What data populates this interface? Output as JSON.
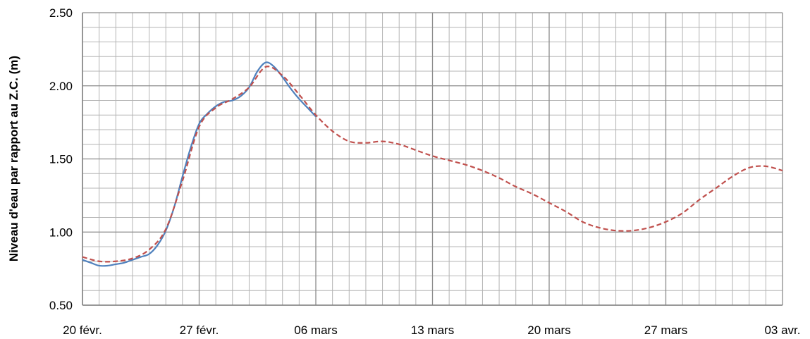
{
  "chart_data": {
    "type": "line",
    "title": "",
    "xlabel": "",
    "ylabel": "Niveau d'eau par rapport au Z.C. (m)",
    "ylim": [
      0.5,
      2.5
    ],
    "xlim": [
      "2011-02-20",
      "2011-04-03"
    ],
    "x_ticks": [
      "20 févr.",
      "27 févr.",
      "06 mars",
      "13 mars",
      "20 mars",
      "27 mars",
      "03 avr."
    ],
    "y_ticks": [
      "0.50",
      "1.00",
      "1.50",
      "2.00",
      "2.50"
    ],
    "grid": true,
    "legend": "none",
    "series": [
      {
        "color": "#4f81bd",
        "style": "solid",
        "x": [
          "2011-02-20",
          "2011-02-20T12:00",
          "2011-02-21",
          "2011-02-21T12:00",
          "2011-02-22",
          "2011-02-22T12:00",
          "2011-02-23",
          "2011-02-23T12:00",
          "2011-02-24",
          "2011-02-24T12:00",
          "2011-02-25",
          "2011-02-25T12:00",
          "2011-02-26",
          "2011-02-26T12:00",
          "2011-02-27",
          "2011-02-27T12:00",
          "2011-02-28",
          "2011-02-28T12:00",
          "2011-03-01",
          "2011-03-01T12:00",
          "2011-03-02",
          "2011-03-02T12:00",
          "2011-03-03",
          "2011-03-03T12:00",
          "2011-03-04",
          "2011-03-04T12:00",
          "2011-03-05",
          "2011-03-05T12:00",
          "2011-03-06"
        ],
        "y": [
          0.81,
          0.79,
          0.77,
          0.77,
          0.78,
          0.79,
          0.81,
          0.83,
          0.85,
          0.91,
          1.01,
          1.17,
          1.38,
          1.58,
          1.74,
          1.81,
          1.86,
          1.89,
          1.9,
          1.93,
          1.99,
          2.1,
          2.16,
          2.13,
          2.06,
          1.98,
          1.91,
          1.85,
          1.79
        ]
      },
      {
        "color": "#c0504d",
        "style": "dashed",
        "x": [
          "2011-02-20",
          "2011-02-21",
          "2011-02-22",
          "2011-02-23",
          "2011-02-24",
          "2011-02-25",
          "2011-02-26",
          "2011-02-27",
          "2011-02-28",
          "2011-03-01",
          "2011-03-02",
          "2011-03-03",
          "2011-03-04",
          "2011-03-05",
          "2011-03-06",
          "2011-03-07",
          "2011-03-08",
          "2011-03-09",
          "2011-03-10",
          "2011-03-11",
          "2011-03-12",
          "2011-03-13",
          "2011-03-14",
          "2011-03-15",
          "2011-03-16",
          "2011-03-17",
          "2011-03-18",
          "2011-03-19",
          "2011-03-20",
          "2011-03-21",
          "2011-03-22",
          "2011-03-23",
          "2011-03-24",
          "2011-03-25",
          "2011-03-26",
          "2011-03-27",
          "2011-03-28",
          "2011-03-29",
          "2011-03-30",
          "2011-03-31",
          "2011-04-01",
          "2011-04-02",
          "2011-04-03"
        ],
        "y": [
          0.83,
          0.8,
          0.8,
          0.82,
          0.88,
          1.02,
          1.35,
          1.72,
          1.85,
          1.91,
          1.99,
          2.13,
          2.07,
          1.94,
          1.8,
          1.69,
          1.62,
          1.61,
          1.62,
          1.6,
          1.56,
          1.52,
          1.49,
          1.46,
          1.42,
          1.37,
          1.31,
          1.26,
          1.2,
          1.14,
          1.07,
          1.03,
          1.01,
          1.01,
          1.03,
          1.07,
          1.13,
          1.22,
          1.3,
          1.38,
          1.44,
          1.45,
          1.42
        ]
      }
    ]
  }
}
